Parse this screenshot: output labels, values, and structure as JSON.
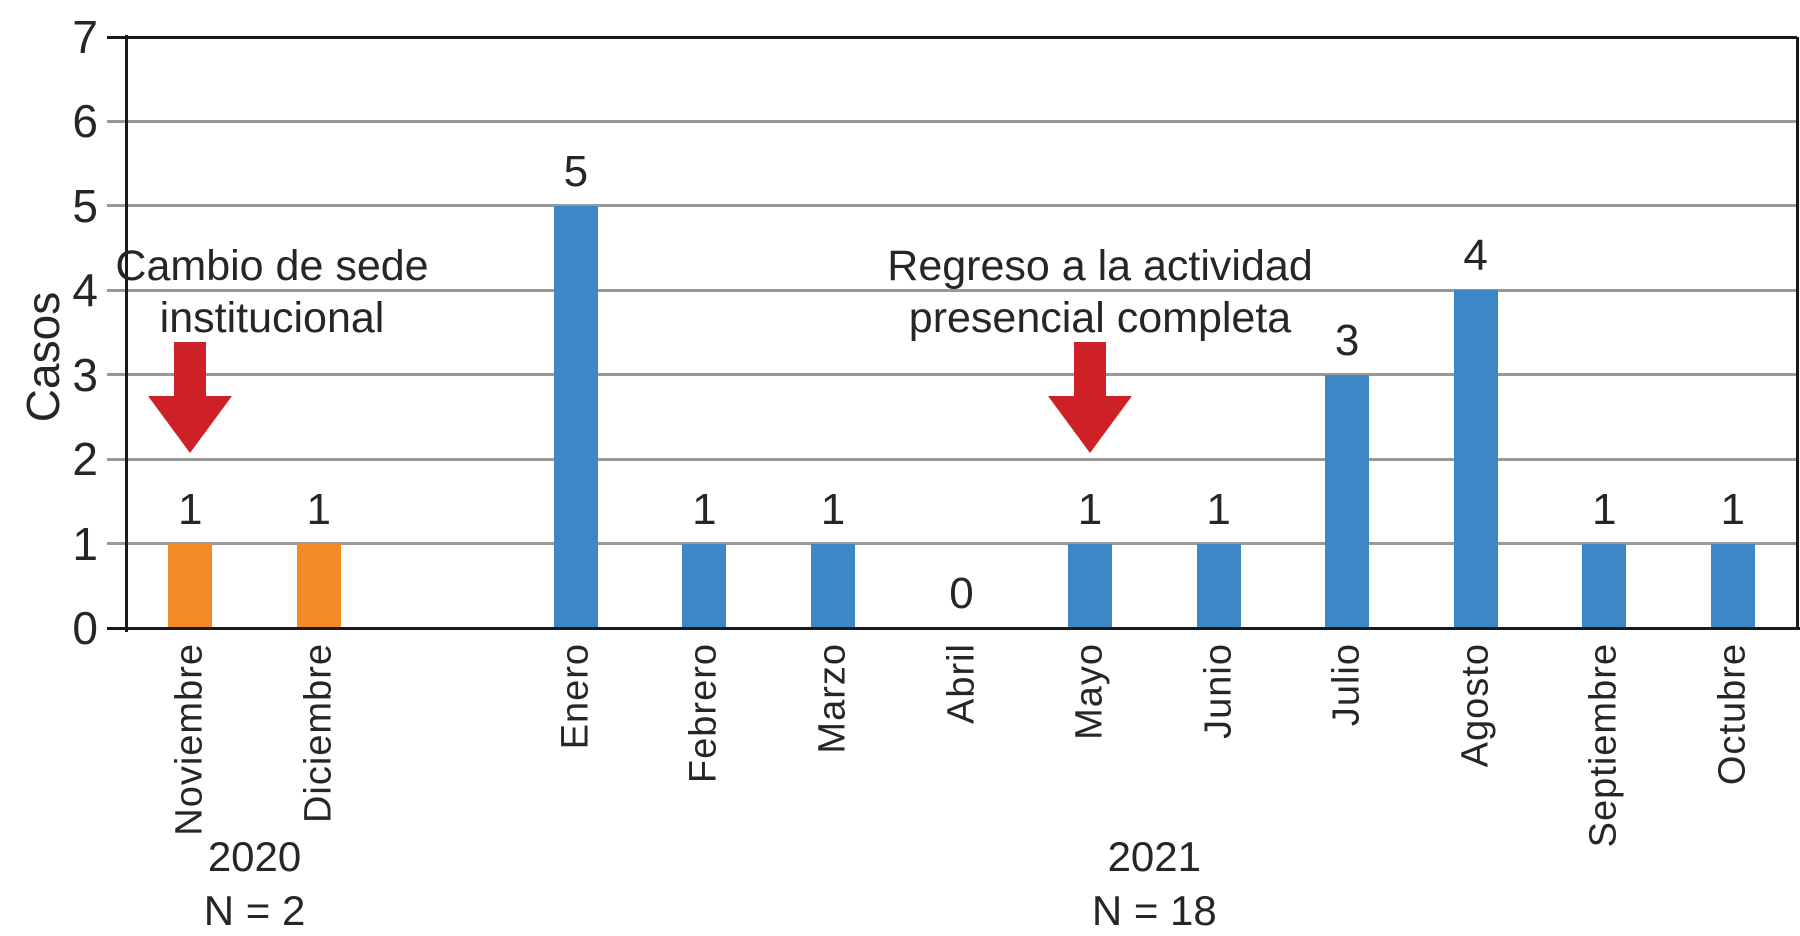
{
  "chart_data": {
    "type": "bar",
    "title": "",
    "xlabel": "",
    "ylabel": "Casos",
    "ylim": [
      0,
      7
    ],
    "yticks": [
      "0",
      "1",
      "2",
      "3",
      "4",
      "5",
      "6",
      "7"
    ],
    "grid": "horizontal",
    "legend": "none",
    "categories": [
      "Noviembre",
      "Diciembre",
      "Enero",
      "Febrero",
      "Marzo",
      "Abril",
      "Mayo",
      "Junio",
      "Julio",
      "Agosto",
      "Septiembre",
      "Octubre"
    ],
    "values": [
      1,
      1,
      5,
      1,
      1,
      0,
      1,
      1,
      3,
      4,
      1,
      1
    ],
    "bar_colors": [
      "#F18A27",
      "#F18A27",
      "#3E87C6",
      "#3E87C6",
      "#3E87C6",
      "#3E87C6",
      "#3E87C6",
      "#3E87C6",
      "#3E87C6",
      "#3E87C6",
      "#3E87C6",
      "#3E87C6"
    ],
    "gap_after_category": "Diciembre",
    "year_groups": [
      {
        "year": "2020",
        "n_label": "N = 2",
        "first_category": "Noviembre",
        "last_category": "Diciembre"
      },
      {
        "year": "2021",
        "n_label": "N = 18",
        "first_category": "Enero",
        "last_category": "Octubre"
      }
    ],
    "annotations": [
      {
        "line1": "Cambio de sede",
        "line2": "institucional",
        "arrow_month": "Noviembre"
      },
      {
        "line1": "Regreso a la actividad",
        "line2": "presencial completa",
        "arrow_month": "Mayo"
      }
    ]
  },
  "colors": {
    "orange_bar": "#F18A27",
    "blue_bar": "#3E87C6",
    "arrow_red": "#CE2127",
    "gridline_gray": "#999999",
    "axis_black": "#1A1A1A",
    "text": "#262626"
  }
}
